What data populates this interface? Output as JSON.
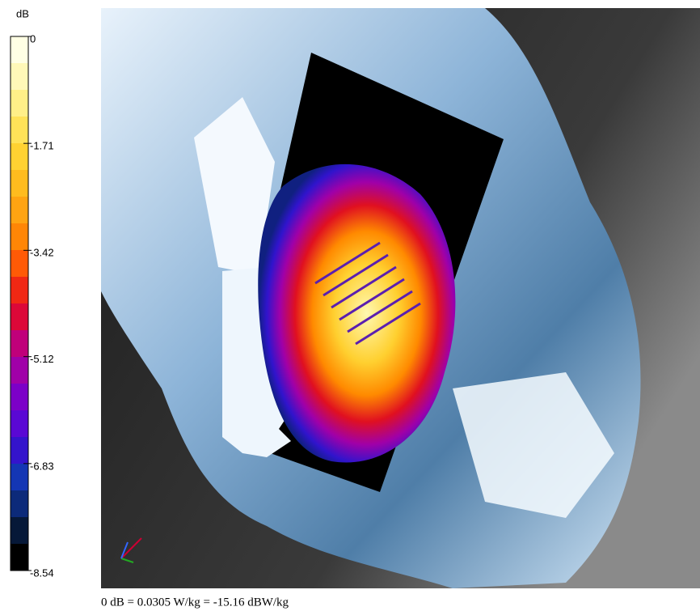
{
  "chart_data": {
    "type": "colorbar",
    "unit": "dB",
    "ylim": [
      -8.54,
      0
    ],
    "yticks": [
      0,
      -1.71,
      -3.42,
      -5.12,
      -6.83,
      -8.54
    ],
    "colormap": [
      "#ffffe4",
      "#fff8b8",
      "#ffef88",
      "#ffe258",
      "#ffd232",
      "#ffbc1e",
      "#ffa412",
      "#ff8606",
      "#ff5a06",
      "#f02814",
      "#dc0838",
      "#c0007a",
      "#a000a8",
      "#7c00c8",
      "#5a08d4",
      "#3414cc",
      "#1436b4",
      "#0c2a7a",
      "#061838",
      "#000000"
    ],
    "footer": "0 dB = 0.0305 W/kg = -15.16 dBW/kg"
  }
}
